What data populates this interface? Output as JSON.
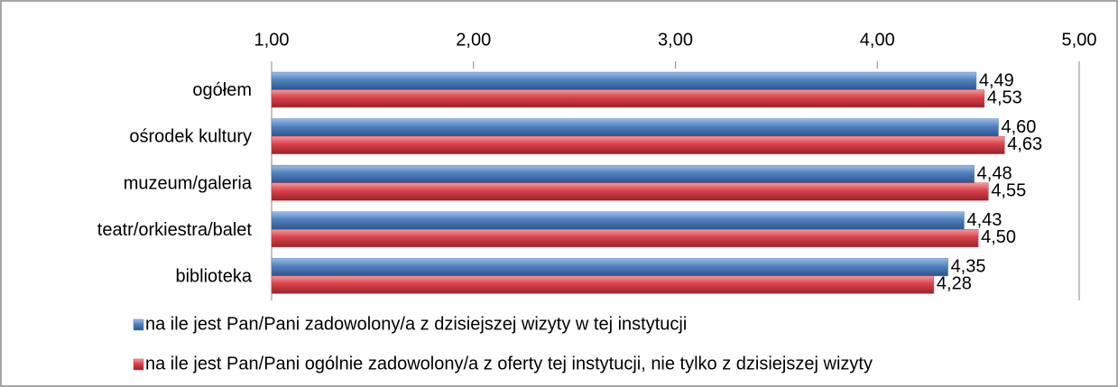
{
  "chart_data": {
    "type": "bar",
    "orientation": "horizontal",
    "categories": [
      "ogółem",
      "ośrodek kultury",
      "muzeum/galeria",
      "teatr/orkiestra/balet",
      "biblioteka"
    ],
    "series": [
      {
        "name": "na ile jest Pan/Pani zadowolony/a z dzisiejszej wizyty w tej instytucji",
        "color": "#4f81bd",
        "values": [
          4.49,
          4.6,
          4.48,
          4.43,
          4.35
        ],
        "value_labels": [
          "4,49",
          "4,60",
          "4,48",
          "4,43",
          "4,35"
        ]
      },
      {
        "name": "na ile jest Pan/Pani ogólnie zadowolony/a z oferty tej instytucji, nie tylko z dzisiejszej wizyty",
        "color": "#d9414a",
        "values": [
          4.53,
          4.63,
          4.55,
          4.5,
          4.28
        ],
        "value_labels": [
          "4,53",
          "4,63",
          "4,55",
          "4,50",
          "4,28"
        ]
      }
    ],
    "xlim": [
      1,
      5
    ],
    "xticks": [
      {
        "value": 1,
        "label": "1,00"
      },
      {
        "value": 2,
        "label": "2,00"
      },
      {
        "value": 3,
        "label": "3,00"
      },
      {
        "value": 4,
        "label": "4,00"
      },
      {
        "value": 5,
        "label": "5,00"
      }
    ],
    "legend": "bottom"
  }
}
